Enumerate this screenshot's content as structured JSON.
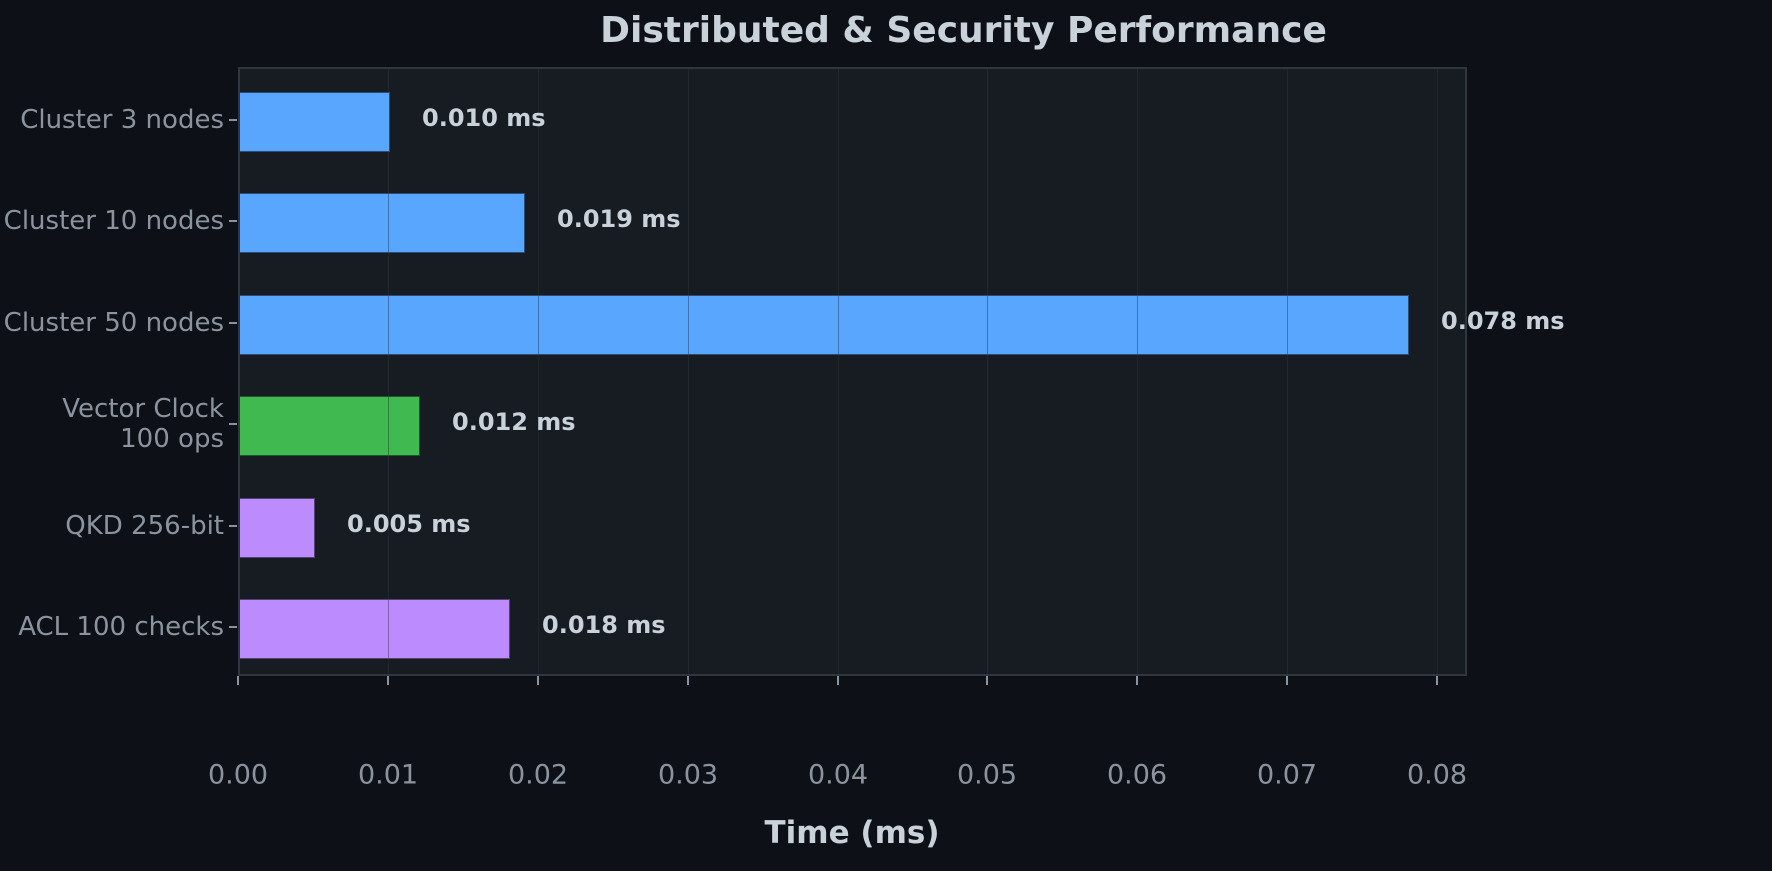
{
  "chart_data": {
    "type": "bar",
    "orientation": "horizontal",
    "title": "Distributed & Security Performance",
    "xlabel": "Time (ms)",
    "ylabel": "",
    "xlim": [
      0,
      0.082
    ],
    "xticks": [
      "0.00",
      "0.01",
      "0.02",
      "0.03",
      "0.04",
      "0.05",
      "0.06",
      "0.07",
      "0.08"
    ],
    "grid": "vertical",
    "categories": [
      "Cluster 3 nodes",
      "Cluster 10 nodes",
      "Cluster 50 nodes",
      "Vector Clock\n100 ops",
      "QKD 256-bit",
      "ACL 100 checks"
    ],
    "values": [
      0.01,
      0.019,
      0.078,
      0.012,
      0.005,
      0.018
    ],
    "value_labels": [
      "0.010 ms",
      "0.019 ms",
      "0.078 ms",
      "0.012 ms",
      "0.005 ms",
      "0.018 ms"
    ],
    "bar_colors": [
      "#58a6ff",
      "#58a6ff",
      "#58a6ff",
      "#3fb950",
      "#bc8cff",
      "#bc8cff"
    ],
    "legend": null
  },
  "theme": {
    "background": "#0d1117",
    "plot_background": "#161b22",
    "text": "#c9d1d9",
    "muted_text": "#8b949e"
  },
  "bars": [
    {
      "label_line1": "Cluster 3 nodes",
      "label_line2": "",
      "value": 0.01,
      "value_label": "0.010 ms",
      "color": "#58a6ff"
    },
    {
      "label_line1": "Cluster 10 nodes",
      "label_line2": "",
      "value": 0.019,
      "value_label": "0.019 ms",
      "color": "#58a6ff"
    },
    {
      "label_line1": "Cluster 50 nodes",
      "label_line2": "",
      "value": 0.078,
      "value_label": "0.078 ms",
      "color": "#58a6ff"
    },
    {
      "label_line1": "Vector Clock",
      "label_line2": "100 ops",
      "value": 0.012,
      "value_label": "0.012 ms",
      "color": "#3fb950"
    },
    {
      "label_line1": "QKD 256-bit",
      "label_line2": "",
      "value": 0.005,
      "value_label": "0.005 ms",
      "color": "#bc8cff"
    },
    {
      "label_line1": "ACL 100 checks",
      "label_line2": "",
      "value": 0.018,
      "value_label": "0.018 ms",
      "color": "#bc8cff"
    }
  ]
}
